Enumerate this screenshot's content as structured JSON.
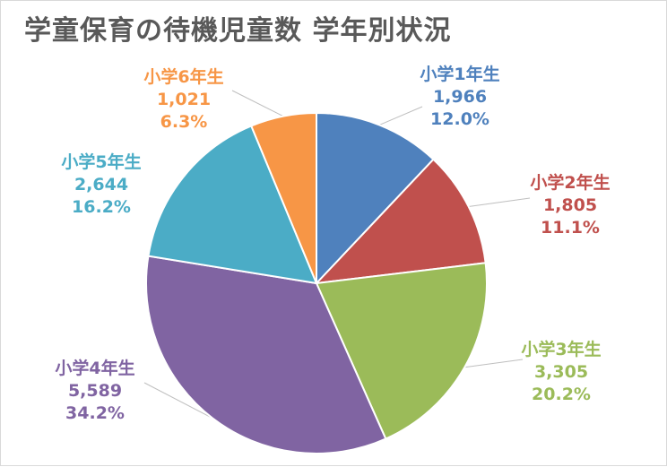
{
  "chart_data": {
    "type": "pie",
    "title": "学童保育の待機児童数 学年別状況",
    "slices": [
      {
        "label": "小学1年生",
        "value": 1966,
        "value_text": "1,966",
        "percent_text": "12.0%",
        "color": "#4f81bd"
      },
      {
        "label": "小学2年生",
        "value": 1805,
        "value_text": "1,805",
        "percent_text": "11.1%",
        "color": "#c0504d"
      },
      {
        "label": "小学3年生",
        "value": 3305,
        "value_text": "3,305",
        "percent_text": "20.2%",
        "color": "#9bbb59"
      },
      {
        "label": "小学4年生",
        "value": 5589,
        "value_text": "5,589",
        "percent_text": "34.2%",
        "color": "#8064a2"
      },
      {
        "label": "小学5年生",
        "value": 2644,
        "value_text": "2,644",
        "percent_text": "16.2%",
        "color": "#4bacc6"
      },
      {
        "label": "小学6年生",
        "value": 1021,
        "value_text": "1,021",
        "percent_text": "6.3%",
        "color": "#f79646"
      }
    ],
    "start_angle": "12 o'clock",
    "direction": "clockwise",
    "legend": "none"
  }
}
